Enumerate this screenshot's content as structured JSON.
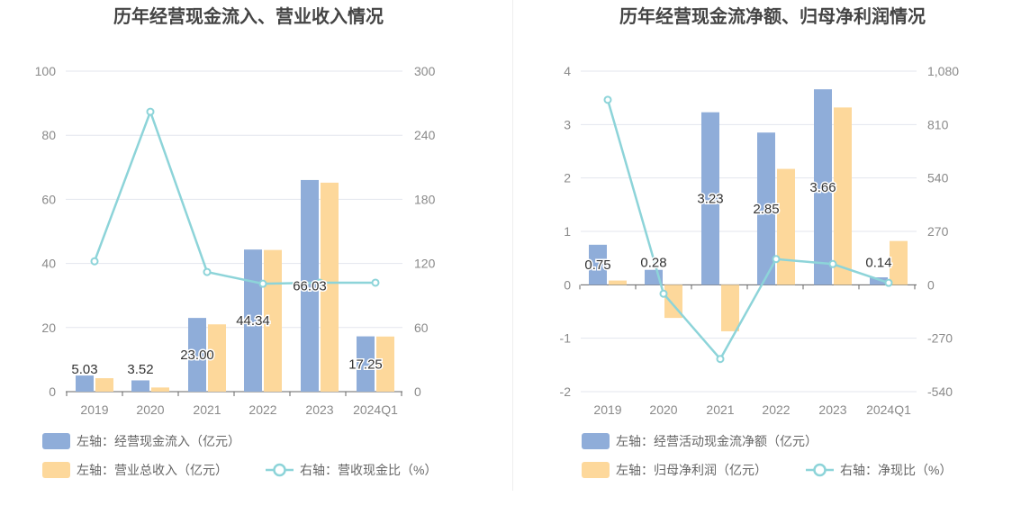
{
  "chart_data": [
    {
      "type": "bar",
      "title": "历年经营现金流入、营业收入情况",
      "categories": [
        "2019",
        "2020",
        "2021",
        "2022",
        "2023",
        "2024Q1"
      ],
      "y_left": {
        "ylim": [
          0,
          100
        ],
        "ticks": [
          "0",
          "20",
          "40",
          "60",
          "80",
          "100"
        ]
      },
      "y_right": {
        "ylim": [
          0,
          300
        ],
        "ticks": [
          "0",
          "60",
          "120",
          "180",
          "240",
          "300"
        ]
      },
      "series": [
        {
          "name": "左轴：经营现金流入（亿元）",
          "type": "bar",
          "axis": "left",
          "color": "#8fadd9",
          "values": [
            5.03,
            3.52,
            23.0,
            44.34,
            66.03,
            17.25
          ],
          "labels": [
            "5.03",
            "3.52",
            "23.00",
            "44.34",
            "66.03",
            "17.25"
          ]
        },
        {
          "name": "左轴：营业总收入（亿元）",
          "type": "bar",
          "axis": "left",
          "color": "#fdd89b",
          "values": [
            4.2,
            1.3,
            21.0,
            44.2,
            65.2,
            17.2
          ]
        },
        {
          "name": "右轴：营收现金比（%）",
          "type": "line",
          "axis": "right",
          "color": "#8dd4d9",
          "values": [
            122,
            262,
            112,
            101,
            102,
            102
          ]
        }
      ]
    },
    {
      "type": "bar",
      "title": "历年经营现金流净额、归母净利润情况",
      "categories": [
        "2019",
        "2020",
        "2021",
        "2022",
        "2023",
        "2024Q1"
      ],
      "y_left": {
        "ylim": [
          -2,
          4
        ],
        "ticks": [
          "-2",
          "-1",
          "0",
          "1",
          "2",
          "3",
          "4"
        ]
      },
      "y_right": {
        "ylim": [
          -540,
          1080
        ],
        "ticks": [
          "-540",
          "-270",
          "0",
          "270",
          "540",
          "810",
          "1,080"
        ]
      },
      "series": [
        {
          "name": "左轴：经营活动现金流净额（亿元）",
          "type": "bar",
          "axis": "left",
          "color": "#8fadd9",
          "values": [
            0.75,
            0.28,
            3.23,
            2.85,
            3.66,
            0.14
          ],
          "labels": [
            "0.75",
            "0.28",
            "3.23",
            "2.85",
            "3.66",
            "0.14"
          ]
        },
        {
          "name": "左轴：归母净利润（亿元）",
          "type": "bar",
          "axis": "left",
          "color": "#fdd89b",
          "values": [
            0.08,
            -0.62,
            -0.87,
            2.17,
            3.32,
            0.82
          ]
        },
        {
          "name": "右轴：净现比（%）",
          "type": "line",
          "axis": "right",
          "color": "#8dd4d9",
          "values": [
            935,
            -45,
            -375,
            130,
            105,
            10
          ]
        }
      ]
    }
  ]
}
